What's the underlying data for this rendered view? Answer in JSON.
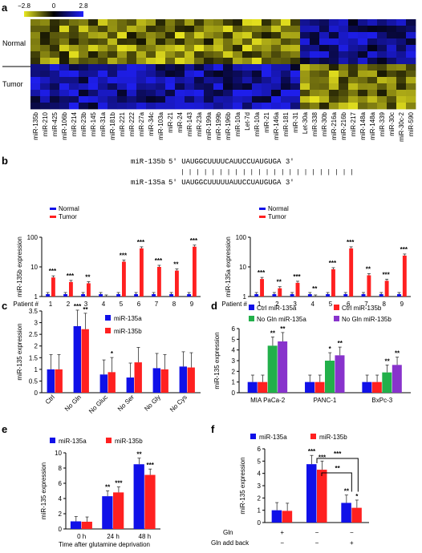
{
  "panel_labels": {
    "a": "a",
    "b": "b",
    "c": "c",
    "d": "d",
    "e": "e",
    "f": "f"
  },
  "colors": {
    "blue": "#1010e8",
    "red": "#ff2020",
    "green": "#22b04a",
    "purple": "#8833cc"
  },
  "seq": {
    "b_name": "miR-135b",
    "b_seq": "5′ UAUGGCUUUUCAUUCCUAUGUGA 3′",
    "a_name": "miR-135a",
    "a_seq": "5′ UAUGGCUUUUUAUUCCUAUGUGA 3′",
    "pipes": "| | | | | | | | | | | | | | | | | | | | | | |"
  },
  "chart_data": [
    {
      "panel": "a",
      "type": "heatmap",
      "colorbar": {
        "min": "−2.8",
        "mid": "0",
        "max": "2.8"
      },
      "row_groups": [
        "Normal",
        "Tumor"
      ],
      "columns": [
        "miR-135b",
        "miR-210",
        "miR-425",
        "miR-106b",
        "miR-214",
        "miR-23b",
        "miR-145",
        "miR-31a",
        "miR-181b",
        "miR-221",
        "miR-222",
        "miR-27a",
        "miR-34c",
        "miR-103a",
        "miR-21",
        "miR-24",
        "miR-143",
        "miR-23a",
        "miR-199a",
        "miR-199b",
        "miR-196b",
        "miR-10a",
        "Let-7d",
        "miR-10a",
        "miR-21",
        "miR-146a",
        "miR-181",
        "miR-31",
        "Let-30a",
        "miR-338",
        "miR-30b",
        "miR-216a",
        "miR-216b",
        "miR-217",
        "miR-148a",
        "miR-148a",
        "miR-339",
        "miR-30c",
        "miR-30c-2",
        "miR-590"
      ]
    },
    {
      "panel": "b-left",
      "type": "bar",
      "ylabel": "miR-135b expression",
      "yscale": "log",
      "ylim": [
        1,
        100
      ],
      "yticks": [
        "1",
        "10",
        "100"
      ],
      "xprefix": "Patient #",
      "categories": [
        "1",
        "2",
        "3",
        "4",
        "5",
        "6",
        "7",
        "8",
        "9"
      ],
      "series": [
        {
          "name": "Normal",
          "values": [
            1,
            1,
            1,
            1,
            1,
            1,
            1,
            1,
            1
          ]
        },
        {
          "name": "Tumor",
          "values": [
            4.4,
            3.1,
            2.8,
            1,
            15,
            42,
            10,
            7.5,
            48
          ]
        }
      ],
      "annotations": [
        "***",
        "***",
        "**",
        "",
        "***",
        "***",
        "***",
        "**",
        "***"
      ]
    },
    {
      "panel": "b-right",
      "type": "bar",
      "ylabel": "miR-135a expression",
      "yscale": "log",
      "ylim": [
        1,
        100
      ],
      "yticks": [
        "1",
        "10",
        "100"
      ],
      "xprefix": "Patient #",
      "categories": [
        "1",
        "2",
        "3",
        "4",
        "5",
        "6",
        "7",
        "8",
        "9"
      ],
      "series": [
        {
          "name": "Normal",
          "values": [
            1,
            1,
            1,
            1,
            1,
            1,
            1,
            1,
            1
          ]
        },
        {
          "name": "Tumor",
          "values": [
            3.9,
            1.9,
            2.9,
            1,
            8.3,
            42,
            5.2,
            3.4,
            24
          ]
        }
      ],
      "annotations": [
        "***",
        "**",
        "***",
        "**",
        "***",
        "***",
        "**",
        "***",
        "***"
      ]
    },
    {
      "panel": "c",
      "type": "bar",
      "ylabel": "miR-135 expression",
      "ylim": [
        0,
        3.5
      ],
      "yticks": [
        "0",
        "0.5",
        "1",
        "1.5",
        "2",
        "2.5",
        "3",
        "3.5"
      ],
      "categories": [
        "Ctrl",
        "No Gln",
        "No Gluc",
        "No Ser",
        "No Gly",
        "No Cys"
      ],
      "series": [
        {
          "name": "miR-135a",
          "values": [
            1.0,
            2.85,
            0.78,
            0.65,
            1.05,
            1.12
          ]
        },
        {
          "name": "miR-135b",
          "values": [
            1.0,
            2.72,
            0.88,
            1.3,
            1.0,
            1.08
          ]
        }
      ],
      "annotations_a": [
        "",
        "***",
        "",
        "",
        "",
        ""
      ],
      "annotations_b": [
        "",
        "**",
        "*",
        "",
        "",
        ""
      ]
    },
    {
      "panel": "d",
      "type": "bar",
      "ylabel": "miR-135 expression",
      "ylim": [
        0,
        6
      ],
      "yticks": [
        "0",
        "1",
        "2",
        "3",
        "4",
        "5",
        "6"
      ],
      "categories": [
        "MIA PaCa-2",
        "PANC-1",
        "BxPc-3"
      ],
      "series": [
        {
          "name": "Ctrl miR-135a",
          "values": [
            1,
            1,
            1
          ]
        },
        {
          "name": "Ctrl miR-135b",
          "values": [
            1,
            1,
            1
          ]
        },
        {
          "name": "No Gln miR-135a",
          "values": [
            4.4,
            3.0,
            1.9
          ]
        },
        {
          "name": "No Gln miR-135b",
          "values": [
            4.8,
            3.5,
            2.6
          ]
        }
      ],
      "annotations_green": [
        "**",
        "*",
        "**"
      ],
      "annotations_purple": [
        "**",
        "**",
        "**"
      ]
    },
    {
      "panel": "e",
      "type": "bar",
      "ylabel": "miR-135 expression",
      "ylim": [
        0,
        10
      ],
      "yticks": [
        "0",
        "2",
        "4",
        "6",
        "8",
        "10"
      ],
      "xlabel": "Time after glutamine deprivation",
      "categories": [
        "0 h",
        "24 h",
        "48 h"
      ],
      "series": [
        {
          "name": "miR-135a",
          "values": [
            1.0,
            4.3,
            8.5
          ]
        },
        {
          "name": "miR-135b",
          "values": [
            0.95,
            4.8,
            7.1
          ]
        }
      ],
      "annotations_a": [
        "",
        "**",
        "**"
      ],
      "annotations_b": [
        "",
        "***",
        "***"
      ]
    },
    {
      "panel": "f",
      "type": "bar",
      "ylabel": "miR-135 expression",
      "ylim": [
        0,
        6
      ],
      "yticks": [
        "0",
        "1",
        "2",
        "3",
        "4",
        "5",
        "6"
      ],
      "row_labels": [
        "Gln",
        "Gln add back"
      ],
      "conditions": [
        [
          "+",
          "−"
        ],
        [
          "−",
          "−"
        ],
        [
          "−",
          "+"
        ]
      ],
      "series": [
        {
          "name": "miR-135a",
          "values": [
            1.0,
            4.75,
            1.6
          ]
        },
        {
          "name": "miR-135b",
          "values": [
            0.95,
            4.3,
            1.2
          ]
        }
      ],
      "annotations_a": [
        "",
        "***",
        "**"
      ],
      "annotations_b": [
        "",
        "***",
        "*"
      ],
      "brackets": [
        "***",
        "**"
      ]
    }
  ]
}
